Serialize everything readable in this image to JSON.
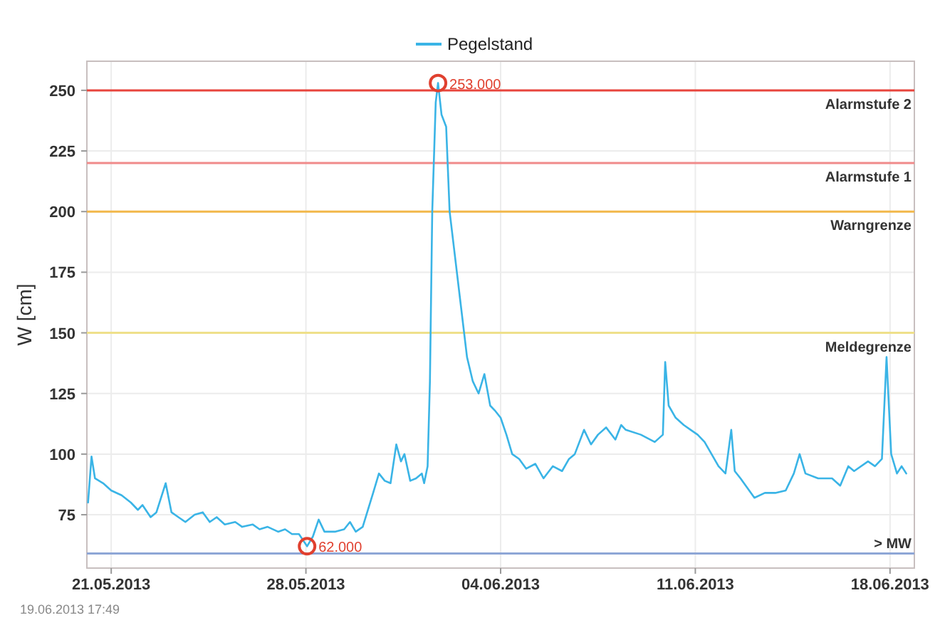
{
  "chart_data": {
    "type": "line",
    "ylabel": "W [cm]",
    "legend": "top",
    "grid": true,
    "line_style": "solid",
    "xlim": [
      "2013-05-20T03:00",
      "2013-06-18T21:00"
    ],
    "xticks": [
      {
        "value": "2013-05-21",
        "label": "21.05.2013"
      },
      {
        "value": "2013-05-28",
        "label": "28.05.2013"
      },
      {
        "value": "2013-06-04",
        "label": "04.06.2013"
      },
      {
        "value": "2013-06-11",
        "label": "11.06.2013"
      },
      {
        "value": "2013-06-18",
        "label": "18.06.2013"
      }
    ],
    "ylim": [
      53,
      262
    ],
    "yticks": [
      75,
      100,
      125,
      150,
      175,
      200,
      225,
      250
    ],
    "ref_lines": [
      {
        "axis": "y",
        "value": 250,
        "label": "Alarmstufe 2",
        "color": "#e8453c"
      },
      {
        "axis": "y",
        "value": 220,
        "label": "Alarmstufe 1",
        "color": "#f08a8a"
      },
      {
        "axis": "y",
        "value": 200,
        "label": "Warngrenze",
        "color": "#f2b84b"
      },
      {
        "axis": "y",
        "value": 150,
        "label": "Meldegrenze",
        "color": "#efe08a"
      },
      {
        "axis": "y",
        "value": 59,
        "label": "> MW",
        "color": "#8ea6d6"
      }
    ],
    "annotations": [
      {
        "text": "253.000",
        "x": "2013-06-01T18:00",
        "y": 253
      },
      {
        "text": "62.000",
        "x": "2013-05-28T01:00",
        "y": 62
      },
      "19.06.2013  17:49"
    ],
    "series": [
      {
        "name": "Pegelstand",
        "color": "#3ab4e6",
        "x": [
          "2013-05-20T04:00",
          "2013-05-20T07:00",
          "2013-05-20T10:00",
          "2013-05-20T17:00",
          "2013-05-21T00:00",
          "2013-05-21T09:00",
          "2013-05-21T17:00",
          "2013-05-21T23:00",
          "2013-05-22T03:00",
          "2013-05-22T10:00",
          "2013-05-22T15:00",
          "2013-05-22T23:00",
          "2013-05-23T04:00",
          "2013-05-23T10:00",
          "2013-05-23T16:00",
          "2013-05-24T00:00",
          "2013-05-24T07:00",
          "2013-05-24T13:00",
          "2013-05-24T19:00",
          "2013-05-25T02:00",
          "2013-05-25T11:00",
          "2013-05-25T17:00",
          "2013-05-26T02:00",
          "2013-05-26T08:00",
          "2013-05-26T15:00",
          "2013-05-27T00:00",
          "2013-05-27T06:00",
          "2013-05-27T12:00",
          "2013-05-27T18:00",
          "2013-05-28T01:00",
          "2013-05-28T06:00",
          "2013-05-28T11:00",
          "2013-05-28T16:00",
          "2013-05-29T01:00",
          "2013-05-29T09:00",
          "2013-05-29T14:00",
          "2013-05-29T19:00",
          "2013-05-30T01:00",
          "2013-05-30T10:00",
          "2013-05-30T15:00",
          "2013-05-30T20:00",
          "2013-05-31T01:00",
          "2013-05-31T06:00",
          "2013-05-31T10:00",
          "2013-05-31T13:00",
          "2013-05-31T18:00",
          "2013-05-31T23:00",
          "2013-06-01T04:00",
          "2013-06-01T06:00",
          "2013-06-01T09:00",
          "2013-06-01T11:00",
          "2013-06-01T13:00",
          "2013-06-01T16:00",
          "2013-06-01T18:00",
          "2013-06-01T21:00",
          "2013-06-02T01:00",
          "2013-06-02T04:00",
          "2013-06-02T09:00",
          "2013-06-02T14:00",
          "2013-06-02T19:00",
          "2013-06-03T00:00",
          "2013-06-03T05:00",
          "2013-06-03T10:00",
          "2013-06-03T15:00",
          "2013-06-03T19:00",
          "2013-06-04T00:00",
          "2013-06-04T05:00",
          "2013-06-04T10:00",
          "2013-06-04T16:00",
          "2013-06-04T22:00",
          "2013-06-05T06:00",
          "2013-06-05T13:00",
          "2013-06-05T21:00",
          "2013-06-06T05:00",
          "2013-06-06T11:00",
          "2013-06-06T16:00",
          "2013-06-07T00:00",
          "2013-06-07T06:00",
          "2013-06-07T12:00",
          "2013-06-07T19:00",
          "2013-06-08T03:00",
          "2013-06-08T08:00",
          "2013-06-08T12:00",
          "2013-06-09T01:00",
          "2013-06-09T13:00",
          "2013-06-09T20:00",
          "2013-06-09T22:00",
          "2013-06-10T01:00",
          "2013-06-10T07:00",
          "2013-06-10T14:00",
          "2013-06-10T20:00",
          "2013-06-11T02:00",
          "2013-06-11T08:00",
          "2013-06-11T14:00",
          "2013-06-11T20:00",
          "2013-06-12T02:00",
          "2013-06-12T07:00",
          "2013-06-12T10:00",
          "2013-06-12T15:00",
          "2013-06-13T03:00",
          "2013-06-13T12:00",
          "2013-06-13T21:00",
          "2013-06-14T06:00",
          "2013-06-14T13:00",
          "2013-06-14T18:00",
          "2013-06-14T23:00",
          "2013-06-15T10:00",
          "2013-06-15T22:00",
          "2013-06-16T05:00",
          "2013-06-16T12:00",
          "2013-06-16T17:00",
          "2013-06-17T05:00",
          "2013-06-17T11:00",
          "2013-06-17T17:00",
          "2013-06-17T21:00",
          "2013-06-18T01:00",
          "2013-06-18T06:00",
          "2013-06-18T10:00",
          "2013-06-18T14:00"
        ],
        "values": [
          80,
          99,
          90,
          88,
          85,
          83,
          80,
          77,
          79,
          74,
          76,
          88,
          76,
          74,
          72,
          75,
          76,
          72,
          74,
          71,
          72,
          70,
          71,
          69,
          70,
          68,
          69,
          67,
          67,
          62,
          66,
          73,
          68,
          68,
          69,
          72,
          68,
          70,
          84,
          92,
          89,
          88,
          104,
          97,
          100,
          89,
          90,
          92,
          88,
          95,
          130,
          200,
          245,
          253,
          240,
          235,
          200,
          180,
          160,
          140,
          130,
          125,
          133,
          120,
          118,
          115,
          108,
          100,
          98,
          94,
          96,
          90,
          95,
          93,
          98,
          100,
          110,
          104,
          108,
          111,
          106,
          112,
          110,
          108,
          105,
          108,
          138,
          120,
          115,
          112,
          110,
          108,
          105,
          100,
          95,
          92,
          110,
          93,
          90,
          82,
          84,
          84,
          85,
          92,
          100,
          92,
          90,
          90,
          87,
          95,
          93,
          97,
          95,
          98,
          140,
          100,
          92,
          95,
          92
        ]
      }
    ]
  }
}
